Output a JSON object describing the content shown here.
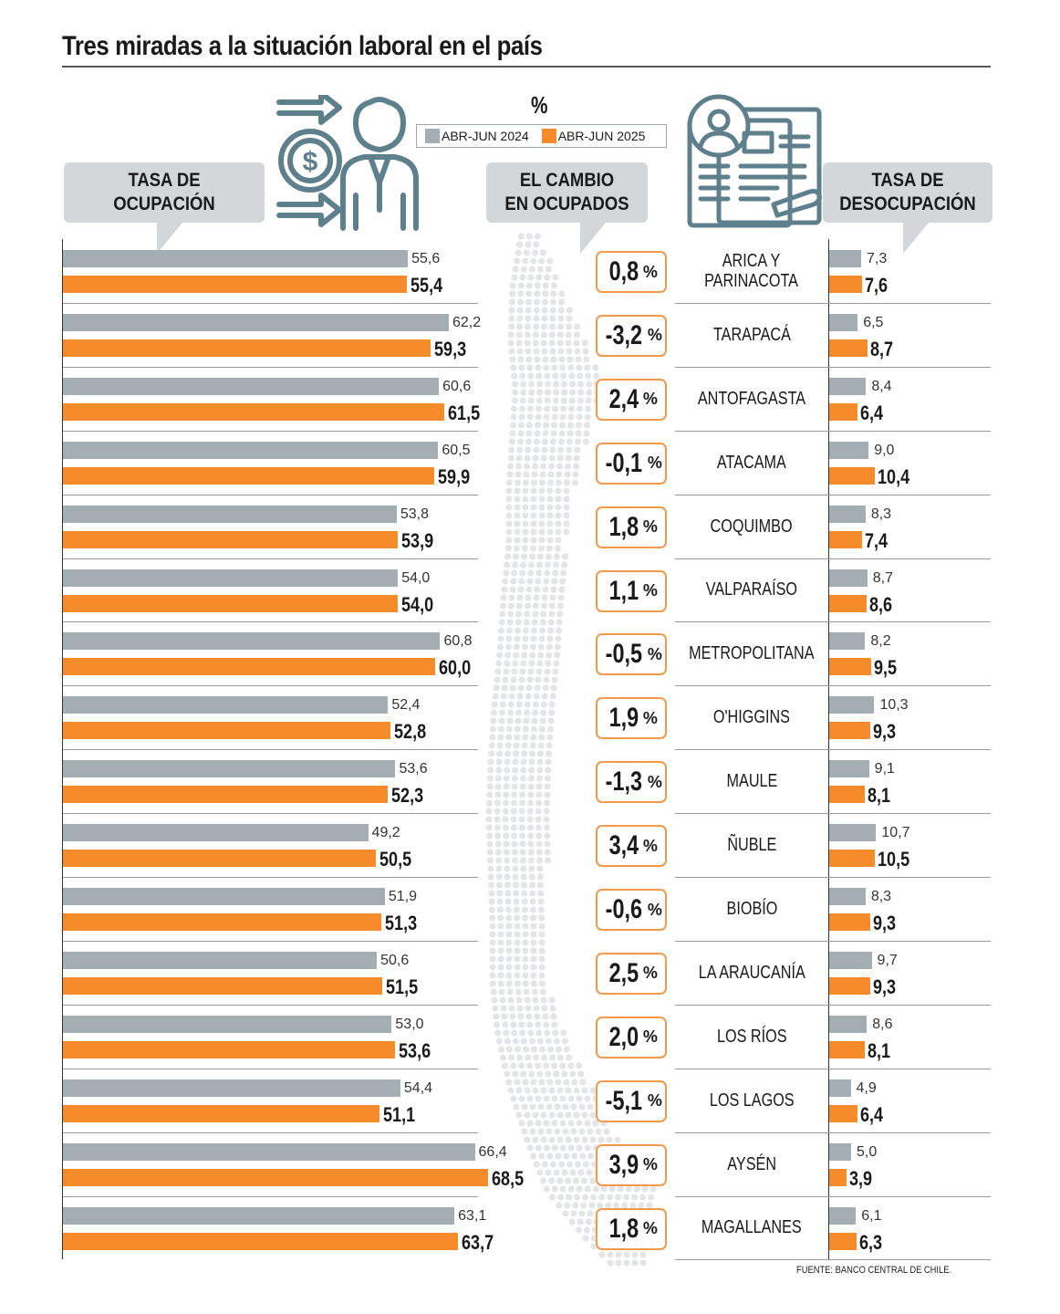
{
  "title": "Tres miradas a la situación laboral en el país",
  "unit_symbol": "%",
  "legend": {
    "series_2024": "ABR-JUN 2024",
    "series_2025": "ABR-JUN 2025"
  },
  "colors": {
    "series_2024": "#a4adb1",
    "series_2025": "#f68b2c",
    "change_border": "#f39a4a",
    "callout_bg": "#d4d7d9",
    "icon": "#5e7f8c"
  },
  "headers": {
    "occupation": [
      "TASA DE",
      "OCUPACIÓN"
    ],
    "change": [
      "EL CAMBIO",
      "EN OCUPADOS"
    ],
    "unemployment": [
      "TASA DE",
      "DESOCUPACIÓN"
    ]
  },
  "icons": [
    "money-arrows-worker-icon",
    "newspaper-job-ads-icon",
    "chile-dot-map"
  ],
  "source": "FUENTE: BANCO CENTRAL DE CHILE.",
  "chart_data": {
    "type": "bar",
    "categories": [
      "ARICA Y PARINACOTA",
      "TARAPACÁ",
      "ANTOFAGASTA",
      "ATACAMA",
      "COQUIMBO",
      "VALPARAÍSO",
      "METROPOLITANA",
      "O'HIGGINS",
      "MAULE",
      "ÑUBLE",
      "BIOBÍO",
      "LA ARAUCANÍA",
      "LOS RÍOS",
      "LOS LAGOS",
      "AYSÉN",
      "MAGALLANES"
    ],
    "region_lines": [
      [
        "ARICA Y",
        "PARINACOTA"
      ],
      [
        "TARAPACÁ"
      ],
      [
        "ANTOFAGASTA"
      ],
      [
        "ATACAMA"
      ],
      [
        "COQUIMBO"
      ],
      [
        "VALPARAÍSO"
      ],
      [
        "METROPOLITANA"
      ],
      [
        "O'HIGGINS"
      ],
      [
        "MAULE"
      ],
      [
        "ÑUBLE"
      ],
      [
        "BIOBÍO"
      ],
      [
        "LA ARAUCANÍA"
      ],
      [
        "LOS RÍOS"
      ],
      [
        "LOS LAGOS"
      ],
      [
        "AYSÉN"
      ],
      [
        "MAGALLANES"
      ]
    ],
    "occupation_rate": {
      "series": [
        {
          "name": "ABR-JUN 2024",
          "values": [
            "55,6",
            "62,2",
            "60,6",
            "60,5",
            "53,8",
            "54,0",
            "60,8",
            "52,4",
            "53,6",
            "49,2",
            "51,9",
            "50,6",
            "53,0",
            "54,4",
            "66,4",
            "63,1"
          ]
        },
        {
          "name": "ABR-JUN 2025",
          "values": [
            "55,4",
            "59,3",
            "61,5",
            "59,9",
            "53,9",
            "54,0",
            "60,0",
            "52,8",
            "52,3",
            "50,5",
            "51,3",
            "51,5",
            "53,6",
            "51,1",
            "68,5",
            "63,7"
          ]
        }
      ]
    },
    "change_in_employed": {
      "values": [
        "0,8",
        "-3,2",
        "2,4",
        "-0,1",
        "1,8",
        "1,1",
        "-0,5",
        "1,9",
        "-1,3",
        "3,4",
        "-0,6",
        "2,5",
        "2,0",
        "-5,1",
        "3,9",
        "1,8"
      ],
      "unit": "%"
    },
    "unemployment_rate": {
      "series": [
        {
          "name": "ABR-JUN 2024",
          "values": [
            "7,3",
            "6,5",
            "8,4",
            "9,0",
            "8,3",
            "8,7",
            "8,2",
            "10,3",
            "9,1",
            "10,7",
            "8,3",
            "9,7",
            "8,6",
            "4,9",
            "5,0",
            "6,1"
          ]
        },
        {
          "name": "ABR-JUN 2025",
          "values": [
            "7,6",
            "8,7",
            "6,4",
            "10,4",
            "7,4",
            "8,6",
            "9,5",
            "9,3",
            "8,1",
            "10,5",
            "9,3",
            "9,3",
            "8,1",
            "6,4",
            "3,9",
            "6,3"
          ]
        }
      ]
    }
  }
}
